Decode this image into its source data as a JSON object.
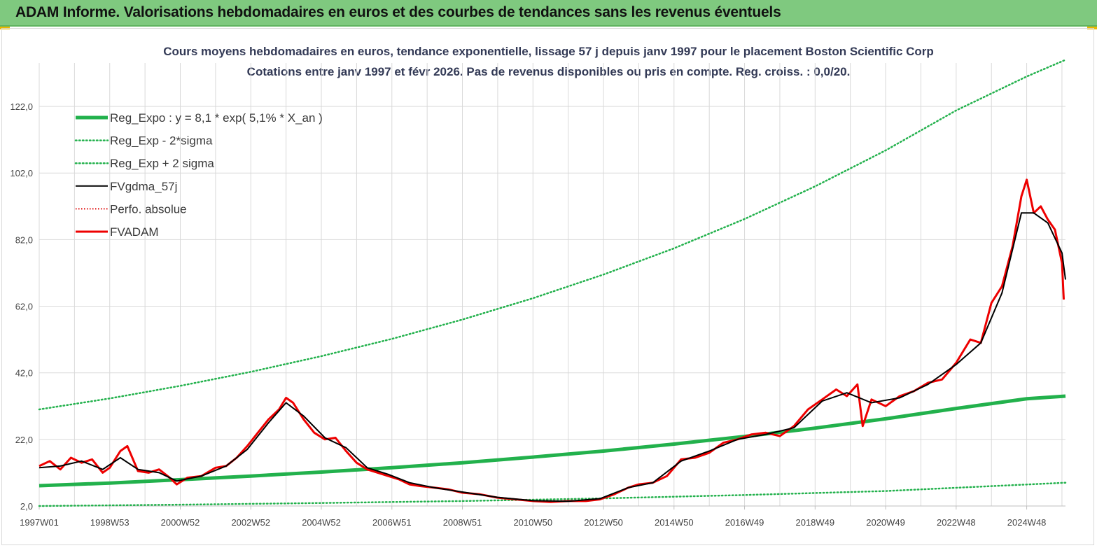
{
  "header": {
    "title": "ADAM Informe. Valorisations hebdomadaires en euros et des courbes de tendances sans les revenus éventuels"
  },
  "colors": {
    "header_bg": "#7fc97f",
    "reg_green": "#22b14c",
    "dotted_green": "#22b14c",
    "smoothed": "#000000",
    "fvadam": "#ee0000",
    "perfo": "#dd0000",
    "grid": "#d9d9d9"
  },
  "chart_data": {
    "type": "line",
    "title_line1": "Cours moyens hebdomadaires en euros, tendance exponentielle, lissage 57 j depuis janv 1997 pour le placement Boston Scientific Corp",
    "title_line2": "Cotations entre janv 1997 et févr 2026. Pas de revenus disponibles ou pris en compte. Reg. croiss. : 0,0/20.",
    "xlabel": "",
    "ylabel": "",
    "ylim": [
      2,
      134
    ],
    "xlim": [
      1997.0,
      2026.1
    ],
    "y_ticks": [
      2,
      22,
      42,
      62,
      82,
      102,
      122
    ],
    "y_tick_labels": [
      "2,0",
      "22,0",
      "42,0",
      "62,0",
      "82,0",
      "102,0",
      "122,0"
    ],
    "x_ticks": [
      1997.0,
      1999.0,
      2001.0,
      2003.0,
      2005.0,
      2007.0,
      2009.0,
      2011.0,
      2013.0,
      2015.0,
      2017.0,
      2019.0,
      2021.0,
      2023.0,
      2025.0
    ],
    "x_tick_labels": [
      "1997W01",
      "1998W53",
      "2000W52",
      "2002W52",
      "2004W52",
      "2006W51",
      "2008W51",
      "2010W50",
      "2012W50",
      "2014W50",
      "2016W49",
      "2018W49",
      "2020W49",
      "2022W48",
      "2024W48"
    ],
    "grid": true,
    "legend_position": "top-left",
    "legend": [
      {
        "label": "Reg_Expo : y = 8,1 * exp( 5,1% *  X_an )",
        "style": "thick-green"
      },
      {
        "label": "Reg_Exp - 2*sigma",
        "style": "dotted-green"
      },
      {
        "label": "Reg_Exp + 2 sigma",
        "style": "dotted-green"
      },
      {
        "label": "FVgdma_57j",
        "style": "black"
      },
      {
        "label": "Perfo. absolue",
        "style": "dotted-red"
      },
      {
        "label": "FVADAM",
        "style": "red"
      }
    ],
    "series": [
      {
        "name": "Reg_Expo : y = 8,1 * exp( 5,1% *  X_an )",
        "style": "thick-green",
        "x": [
          1997.0,
          1999.0,
          2001.0,
          2003.0,
          2005.0,
          2007.0,
          2009.0,
          2011.0,
          2013.0,
          2015.0,
          2017.0,
          2019.0,
          2021.0,
          2023.0,
          2025.0,
          2026.1
        ],
        "values": [
          8.1,
          8.9,
          9.9,
          11.0,
          12.2,
          13.5,
          15.0,
          16.7,
          18.5,
          20.6,
          22.9,
          25.4,
          28.2,
          31.3,
          34.2,
          35.0
        ]
      },
      {
        "name": "Reg_Exp + 2 sigma",
        "style": "dotted-green",
        "x": [
          1997.0,
          1999.0,
          2001.0,
          2003.0,
          2005.0,
          2007.0,
          2009.0,
          2011.0,
          2013.0,
          2015.0,
          2017.0,
          2019.0,
          2021.0,
          2023.0,
          2025.0,
          2026.1
        ],
        "values": [
          31.0,
          34.3,
          38.1,
          42.3,
          47.0,
          52.2,
          58.0,
          64.4,
          71.5,
          79.4,
          88.2,
          98.0,
          108.8,
          120.8,
          131.0,
          136.0
        ]
      },
      {
        "name": "Reg_Exp - 2*sigma",
        "style": "dotted-green",
        "x": [
          1997.0,
          2001.0,
          2005.0,
          2009.0,
          2013.0,
          2017.0,
          2021.0,
          2026.1
        ],
        "values": [
          2.0,
          2.4,
          2.9,
          3.5,
          4.3,
          5.3,
          6.5,
          9.0
        ]
      },
      {
        "name": "FVADAM",
        "style": "red",
        "x": [
          1997.0,
          1997.3,
          1997.6,
          1997.9,
          1998.2,
          1998.5,
          1998.8,
          1999.0,
          1999.3,
          1999.5,
          1999.8,
          2000.1,
          2000.4,
          2000.7,
          2000.9,
          2001.2,
          2001.6,
          2002.0,
          2002.3,
          2002.6,
          2002.9,
          2003.2,
          2003.5,
          2003.8,
          2004.0,
          2004.2,
          2004.5,
          2004.8,
          2005.1,
          2005.4,
          2005.7,
          2006.0,
          2006.3,
          2006.6,
          2006.9,
          2007.2,
          2007.5,
          2007.8,
          2008.2,
          2008.6,
          2009.0,
          2009.5,
          2010.0,
          2010.5,
          2011.0,
          2011.5,
          2012.0,
          2012.5,
          2012.9,
          2013.3,
          2013.7,
          2014.0,
          2014.4,
          2014.8,
          2015.2,
          2015.6,
          2016.0,
          2016.4,
          2016.8,
          2017.2,
          2017.6,
          2018.0,
          2018.4,
          2018.8,
          2019.2,
          2019.6,
          2019.9,
          2020.2,
          2020.35,
          2020.6,
          2021.0,
          2021.4,
          2021.8,
          2022.2,
          2022.6,
          2023.0,
          2023.4,
          2023.7,
          2024.0,
          2024.3,
          2024.6,
          2024.85,
          2025.0,
          2025.2,
          2025.4,
          2025.6,
          2025.8,
          2026.0,
          2026.05
        ],
        "values": [
          14.0,
          15.5,
          13.0,
          16.5,
          15.0,
          16.0,
          12.0,
          13.5,
          18.5,
          20.0,
          12.5,
          12.0,
          13.0,
          10.5,
          8.5,
          10.5,
          11.0,
          13.5,
          14.0,
          16.5,
          20.0,
          24.0,
          28.0,
          31.0,
          34.5,
          33.0,
          28.0,
          24.0,
          22.0,
          22.5,
          18.5,
          15.0,
          13.0,
          12.0,
          11.0,
          10.0,
          8.5,
          8.0,
          7.5,
          7.0,
          6.0,
          5.5,
          4.5,
          4.0,
          3.5,
          3.2,
          3.5,
          3.5,
          4.0,
          5.5,
          7.5,
          8.5,
          9.0,
          11.0,
          16.0,
          16.5,
          18.0,
          21.0,
          22.0,
          23.5,
          24.0,
          23.0,
          26.0,
          31.0,
          34.0,
          37.0,
          35.0,
          38.5,
          26.0,
          34.0,
          32.0,
          35.0,
          36.5,
          39.0,
          40.0,
          45.0,
          52.0,
          51.0,
          63.0,
          68.0,
          80.0,
          95.0,
          100.0,
          90.0,
          92.0,
          88.0,
          85.0,
          75.0,
          64.0
        ]
      },
      {
        "name": "FVgdma_57j",
        "style": "black",
        "x": [
          1997.0,
          1997.6,
          1998.2,
          1998.8,
          1999.3,
          1999.8,
          2000.4,
          2000.9,
          2001.6,
          2002.3,
          2002.9,
          2003.5,
          2004.0,
          2004.5,
          2005.1,
          2005.7,
          2006.3,
          2006.9,
          2007.5,
          2008.2,
          2009.0,
          2010.0,
          2011.0,
          2012.0,
          2012.9,
          2013.7,
          2014.4,
          2015.2,
          2016.0,
          2016.8,
          2017.6,
          2018.4,
          2019.2,
          2019.9,
          2020.6,
          2021.4,
          2022.2,
          2023.0,
          2023.7,
          2024.3,
          2024.85,
          2025.2,
          2025.6,
          2026.0,
          2026.1
        ],
        "values": [
          13.5,
          14.0,
          15.5,
          13.0,
          16.5,
          13.0,
          12.0,
          9.5,
          11.0,
          14.0,
          19.0,
          27.0,
          33.0,
          29.0,
          22.5,
          19.5,
          13.5,
          11.5,
          9.0,
          7.5,
          6.2,
          4.6,
          3.6,
          3.4,
          4.2,
          7.5,
          9.0,
          15.5,
          18.5,
          22.0,
          23.5,
          25.5,
          33.5,
          36.0,
          33.0,
          34.5,
          38.5,
          44.5,
          51.0,
          66.0,
          90.0,
          90.0,
          87.0,
          78.0,
          70.0
        ]
      }
    ]
  }
}
